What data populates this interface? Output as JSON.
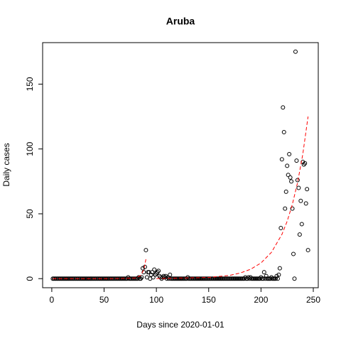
{
  "chart_data": {
    "type": "scatter",
    "title": "Aruba",
    "xlabel": "Days since 2020-01-01",
    "ylabel": "Daily cases",
    "x": [
      1,
      2,
      3,
      4,
      5,
      6,
      7,
      8,
      9,
      10,
      11,
      12,
      13,
      14,
      15,
      16,
      17,
      18,
      19,
      20,
      21,
      22,
      23,
      24,
      25,
      26,
      27,
      28,
      29,
      30,
      31,
      32,
      33,
      34,
      35,
      36,
      37,
      38,
      39,
      40,
      41,
      42,
      43,
      44,
      45,
      46,
      47,
      48,
      49,
      50,
      51,
      52,
      53,
      54,
      55,
      56,
      57,
      58,
      59,
      60,
      61,
      62,
      63,
      64,
      65,
      66,
      67,
      68,
      69,
      70,
      71,
      72,
      73,
      74,
      75,
      76,
      77,
      78,
      79,
      80,
      81,
      82,
      83,
      84,
      85,
      86,
      87,
      88,
      89,
      90,
      91,
      92,
      93,
      94,
      95,
      96,
      97,
      98,
      99,
      100,
      101,
      102,
      103,
      104,
      105,
      106,
      107,
      108,
      109,
      110,
      111,
      112,
      113,
      114,
      115,
      116,
      117,
      118,
      119,
      120,
      121,
      122,
      123,
      124,
      125,
      126,
      127,
      128,
      129,
      130,
      131,
      132,
      133,
      134,
      135,
      136,
      137,
      138,
      139,
      140,
      141,
      142,
      143,
      144,
      145,
      146,
      147,
      148,
      149,
      150,
      151,
      152,
      153,
      154,
      155,
      156,
      157,
      158,
      159,
      160,
      161,
      162,
      163,
      164,
      165,
      166,
      167,
      168,
      169,
      170,
      171,
      172,
      173,
      174,
      175,
      176,
      177,
      178,
      179,
      180,
      181,
      182,
      183,
      184,
      185,
      186,
      187,
      188,
      189,
      190,
      191,
      192,
      193,
      194,
      195,
      196,
      197,
      198,
      199,
      200,
      201,
      202,
      203,
      204,
      205,
      206,
      207,
      208,
      209,
      210,
      211,
      212,
      213,
      214,
      215,
      216,
      217,
      218,
      219,
      220,
      221,
      222,
      223,
      224,
      225,
      226,
      227,
      228,
      229,
      230,
      231,
      232,
      233,
      234,
      235,
      236,
      237,
      238,
      239,
      240,
      241,
      242,
      243,
      244,
      245
    ],
    "values": [
      0,
      0,
      0,
      0,
      0,
      0,
      0,
      0,
      0,
      0,
      0,
      0,
      0,
      0,
      0,
      0,
      0,
      0,
      0,
      0,
      0,
      0,
      0,
      0,
      0,
      0,
      0,
      0,
      0,
      0,
      0,
      0,
      0,
      0,
      0,
      0,
      0,
      0,
      0,
      0,
      0,
      0,
      0,
      0,
      0,
      0,
      0,
      0,
      0,
      0,
      0,
      0,
      0,
      0,
      0,
      0,
      0,
      0,
      0,
      0,
      0,
      0,
      0,
      0,
      0,
      0,
      0,
      0,
      0,
      0,
      0,
      0,
      1,
      0,
      0,
      0,
      0,
      0,
      0,
      0,
      0,
      0,
      1,
      0,
      0,
      1,
      8,
      5,
      9,
      22,
      1,
      5,
      5,
      0,
      3,
      5,
      1,
      7,
      3,
      4,
      5,
      6,
      2,
      1,
      0,
      1,
      2,
      1,
      2,
      0,
      1,
      0,
      3,
      0,
      0,
      0,
      0,
      0,
      0,
      0,
      0,
      0,
      0,
      0,
      0,
      0,
      0,
      0,
      0,
      1,
      0,
      0,
      0,
      0,
      0,
      0,
      0,
      0,
      0,
      0,
      0,
      0,
      0,
      0,
      0,
      0,
      0,
      0,
      0,
      0,
      0,
      0,
      0,
      0,
      0,
      0,
      0,
      0,
      0,
      0,
      0,
      0,
      0,
      0,
      0,
      0,
      0,
      0,
      0,
      0,
      0,
      0,
      0,
      0,
      0,
      0,
      0,
      0,
      0,
      0,
      0,
      0,
      0,
      0,
      1,
      0,
      0,
      1,
      0,
      1,
      0,
      0,
      0,
      0,
      0,
      0,
      0,
      0,
      0,
      1,
      0,
      0,
      5,
      0,
      2,
      0,
      0,
      0,
      0,
      1,
      0,
      0,
      0,
      0,
      2,
      0,
      3,
      8,
      39,
      92,
      132,
      113,
      54,
      67,
      87,
      80,
      96,
      78,
      75,
      54,
      19,
      0,
      175,
      91,
      76,
      70,
      34,
      60,
      42,
      90,
      88,
      89,
      58,
      69,
      22
    ],
    "color": "#000000",
    "fit": {
      "x": [
        1,
        60,
        80,
        85,
        88,
        90,
        91,
        100,
        150,
        170,
        180,
        190,
        200,
        210,
        220,
        225,
        230,
        235,
        240,
        245
      ],
      "values": [
        0,
        0,
        0.5,
        2.5,
        7,
        15,
        null,
        0.07,
        0.9,
        2.5,
        4.3,
        7.2,
        12.1,
        20.3,
        34.1,
        44.2,
        57.3,
        74.2,
        96.1,
        125
      ],
      "color": "#ff0000",
      "dashed": true
    },
    "xlim": [
      -8.76,
      254.76
    ],
    "ylim": [
      -7,
      182
    ],
    "xticks": [
      0,
      50,
      100,
      150,
      200,
      250
    ],
    "yticks": [
      0,
      50,
      100,
      150
    ]
  }
}
